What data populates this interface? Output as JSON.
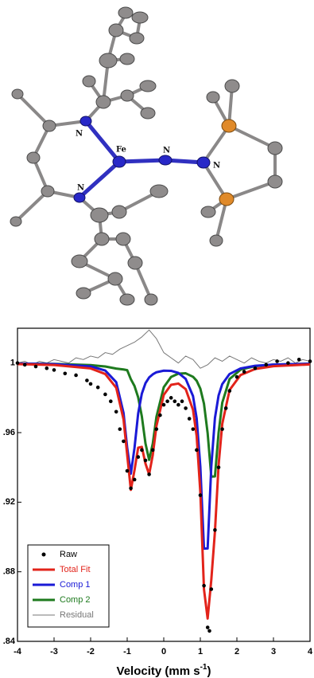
{
  "molecule": {
    "labels": [
      "N",
      "N",
      "Fe",
      "N",
      "N"
    ]
  },
  "chart_data": {
    "type": "line",
    "xlabel": "Velocity (mm s",
    "xlabel_sup": "-1",
    "xlabel_end": ")",
    "xlim": [
      -4,
      4
    ],
    "xticks": [
      -4,
      -3,
      -2,
      -1,
      0,
      1,
      2,
      3,
      4
    ],
    "ylim": [
      0.84,
      1.02
    ],
    "yticks": [
      {
        "value": 0.84,
        "label": ".84"
      },
      {
        "value": 0.88,
        "label": ".88"
      },
      {
        "value": 0.92,
        "label": ".92"
      },
      {
        "value": 0.96,
        "label": ".96"
      },
      1
    ],
    "legend": "lower left",
    "series": [
      {
        "name": "Raw",
        "type": "scatter",
        "color": "#000000",
        "x": [
          -4,
          -3.8,
          -3.5,
          -3.2,
          -3,
          -2.7,
          -2.4,
          -2.1,
          -2,
          -1.8,
          -1.6,
          -1.45,
          -1.3,
          -1.2,
          -1.1,
          -1,
          -0.9,
          -0.8,
          -0.7,
          -0.6,
          -0.5,
          -0.4,
          -0.3,
          -0.2,
          -0.1,
          0,
          0.1,
          0.2,
          0.3,
          0.4,
          0.5,
          0.6,
          0.7,
          0.8,
          0.9,
          1,
          1.1,
          1.2,
          1.25,
          1.3,
          1.4,
          1.5,
          1.6,
          1.7,
          1.8,
          2,
          2.2,
          2.5,
          2.8,
          3.1,
          3.4,
          3.7,
          4
        ],
        "values": [
          1.0,
          0.999,
          0.998,
          0.997,
          0.996,
          0.994,
          0.993,
          0.99,
          0.988,
          0.986,
          0.982,
          0.978,
          0.972,
          0.962,
          0.955,
          0.938,
          0.928,
          0.933,
          0.946,
          0.95,
          0.944,
          0.936,
          0.95,
          0.962,
          0.97,
          0.976,
          0.978,
          0.98,
          0.978,
          0.976,
          0.978,
          0.974,
          0.968,
          0.962,
          0.95,
          0.924,
          0.872,
          0.848,
          0.846,
          0.87,
          0.904,
          0.94,
          0.962,
          0.974,
          0.984,
          0.992,
          0.995,
          0.997,
          0.999,
          1.001,
          1.0,
          1.002,
          1.001
        ]
      },
      {
        "name": "Total Fit",
        "type": "line",
        "color": "#e2231a",
        "x": [
          -4,
          -3,
          -2,
          -1.6,
          -1.3,
          -1.1,
          -1,
          -0.9,
          -0.8,
          -0.7,
          -0.6,
          -0.5,
          -0.4,
          -0.3,
          -0.2,
          0,
          0.2,
          0.4,
          0.6,
          0.8,
          0.9,
          1,
          1.1,
          1.2,
          1.3,
          1.4,
          1.5,
          1.6,
          1.8,
          2.1,
          2.5,
          3,
          4
        ],
        "values": [
          0.9994,
          0.9989,
          0.9969,
          0.9937,
          0.9858,
          0.9676,
          0.9472,
          0.9271,
          0.9384,
          0.9513,
          0.9518,
          0.9422,
          0.936,
          0.9472,
          0.9638,
          0.9817,
          0.9875,
          0.9882,
          0.985,
          0.9731,
          0.958,
          0.9258,
          0.8699,
          0.8531,
          0.8753,
          0.9032,
          0.9414,
          0.9651,
          0.9845,
          0.9931,
          0.9966,
          0.9982,
          0.9992
        ]
      },
      {
        "name": "Comp 1",
        "type": "line",
        "color": "#1a1ad6",
        "x": [
          -4,
          -3,
          -2,
          -1.6,
          -1.3,
          -1.1,
          -1,
          -0.9,
          -0.8,
          -0.7,
          -0.6,
          -0.5,
          -0.4,
          -0.3,
          -0.2,
          0,
          0.2,
          0.4,
          0.6,
          0.8,
          0.9,
          1,
          1.1,
          1.2,
          1.3,
          1.4,
          1.5,
          1.6,
          1.8,
          2.1,
          2.5,
          3,
          4
        ],
        "values": [
          0.9997,
          0.9994,
          0.9981,
          0.9957,
          0.989,
          0.9713,
          0.9513,
          0.9364,
          0.9512,
          0.971,
          0.9824,
          0.9884,
          0.9917,
          0.9935,
          0.9947,
          0.9956,
          0.9955,
          0.9943,
          0.9909,
          0.981,
          0.9682,
          0.9405,
          0.8933,
          0.8934,
          0.9406,
          0.9684,
          0.9814,
          0.9879,
          0.9937,
          0.9969,
          0.9984,
          0.9991,
          0.9996
        ]
      },
      {
        "name": "Comp 2",
        "type": "line",
        "color": "#1e7a1e",
        "x": [
          -4,
          -3,
          -2,
          -1.6,
          -1.3,
          -1.1,
          -1,
          -0.9,
          -0.8,
          -0.7,
          -0.6,
          -0.5,
          -0.4,
          -0.3,
          -0.2,
          0,
          0.2,
          0.4,
          0.6,
          0.8,
          0.9,
          1,
          1.1,
          1.2,
          1.3,
          1.4,
          1.5,
          1.6,
          1.8,
          2.1,
          2.5,
          3,
          4
        ],
        "values": [
          0.9997,
          0.9995,
          0.9988,
          0.998,
          0.9968,
          0.9963,
          0.9959,
          0.9907,
          0.9868,
          0.9803,
          0.9694,
          0.9538,
          0.9443,
          0.9537,
          0.9691,
          0.9861,
          0.992,
          0.9939,
          0.9941,
          0.9921,
          0.9898,
          0.9853,
          0.9766,
          0.9597,
          0.9347,
          0.9348,
          0.96,
          0.9772,
          0.9908,
          0.9962,
          0.9982,
          0.9991,
          0.9996
        ]
      },
      {
        "name": "Residual",
        "type": "thin",
        "color": "#777777",
        "x": [
          -4,
          -3.8,
          -3.6,
          -3.4,
          -3.2,
          -3,
          -2.8,
          -2.6,
          -2.4,
          -2.2,
          -2,
          -1.8,
          -1.6,
          -1.4,
          -1.2,
          -1,
          -0.8,
          -0.6,
          -0.4,
          -0.2,
          0,
          0.2,
          0.4,
          0.6,
          0.8,
          1,
          1.2,
          1.4,
          1.6,
          1.8,
          2,
          2.2,
          2.4,
          2.6,
          2.8,
          3,
          3.2,
          3.4,
          3.6,
          3.8,
          4
        ],
        "values": [
          1.0,
          1.001,
          0.999,
          1.001,
          1.0,
          1.002,
          1.001,
          1.0,
          1.003,
          1.002,
          1.004,
          1.003,
          1.006,
          1.005,
          1.008,
          1.01,
          1.012,
          1.015,
          1.019,
          1.014,
          1.006,
          1.003,
          1.0,
          1.004,
          1.002,
          0.997,
          0.999,
          1.003,
          1.001,
          1.004,
          1.002,
          1.0,
          1.003,
          1.001,
          1.0,
          1.002,
          1.001,
          1.003,
          1.0,
          1.002,
          1.001
        ]
      }
    ]
  }
}
